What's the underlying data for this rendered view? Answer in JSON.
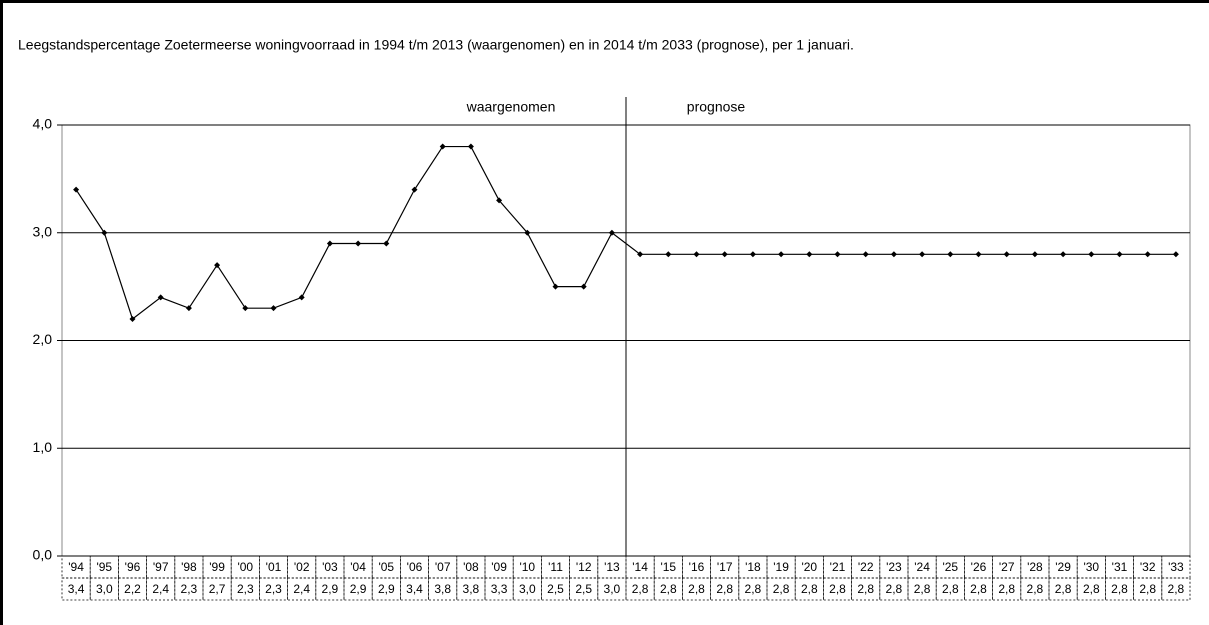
{
  "chart_data": {
    "type": "line",
    "title": "Leegstandspercentage Zoetermeerse woningvoorraad in 1994 t/m 2013 (waargenomen) en in 2014 t/m 2033 (prognose), per 1 januari.",
    "annotations": [
      "waargenomen",
      "prognose"
    ],
    "categories": [
      "'94",
      "'95",
      "'96",
      "'97",
      "'98",
      "'99",
      "'00",
      "'01",
      "'02",
      "'03",
      "'04",
      "'05",
      "'06",
      "'07",
      "'08",
      "'09",
      "'10",
      "'11",
      "'12",
      "'13",
      "'14",
      "'15",
      "'16",
      "'17",
      "'18",
      "'19",
      "'20",
      "'21",
      "'22",
      "'23",
      "'24",
      "'25",
      "'26",
      "'27",
      "'28",
      "'29",
      "'30",
      "'31",
      "'32",
      "'33"
    ],
    "values": [
      3.4,
      3.0,
      2.2,
      2.4,
      2.3,
      2.7,
      2.3,
      2.3,
      2.4,
      2.9,
      2.9,
      2.9,
      3.4,
      3.8,
      3.8,
      3.3,
      3.0,
      2.5,
      2.5,
      3.0,
      2.8,
      2.8,
      2.8,
      2.8,
      2.8,
      2.8,
      2.8,
      2.8,
      2.8,
      2.8,
      2.8,
      2.8,
      2.8,
      2.8,
      2.8,
      2.8,
      2.8,
      2.8,
      2.8,
      2.8
    ],
    "value_labels": [
      "3,4",
      "3,0",
      "2,2",
      "2,4",
      "2,3",
      "2,7",
      "2,3",
      "2,3",
      "2,4",
      "2,9",
      "2,9",
      "2,9",
      "3,4",
      "3,8",
      "3,8",
      "3,3",
      "3,0",
      "2,5",
      "2,5",
      "3,0",
      "2,8",
      "2,8",
      "2,8",
      "2,8",
      "2,8",
      "2,8",
      "2,8",
      "2,8",
      "2,8",
      "2,8",
      "2,8",
      "2,8",
      "2,8",
      "2,8",
      "2,8",
      "2,8",
      "2,8",
      "2,8",
      "2,8",
      "2,8"
    ],
    "color": "#000000",
    "ylim": [
      0,
      4
    ],
    "yticks": [
      {
        "value": 0,
        "label": "0,0"
      },
      {
        "value": 1,
        "label": "1,0"
      },
      {
        "value": 2,
        "label": "2,0"
      },
      {
        "value": 3,
        "label": "3,0"
      },
      {
        "value": 4,
        "label": "4,0"
      }
    ],
    "grid": true
  }
}
